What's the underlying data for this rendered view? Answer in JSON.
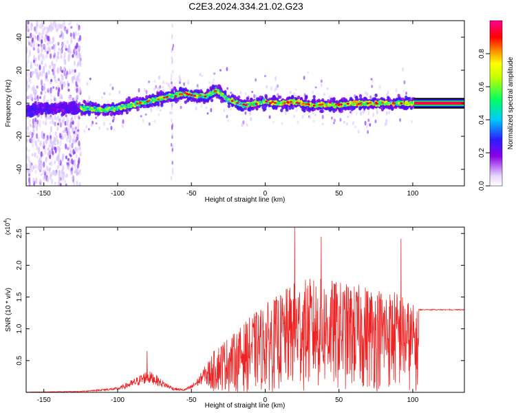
{
  "figure_title": "C2E3.2024.334.21.02.G23",
  "chart_data": [
    {
      "type": "heatmap",
      "panel": "top",
      "xlabel": "Height of straight line (km)",
      "ylabel": "Frequency (Hz)",
      "xlim": [
        -162,
        135
      ],
      "ylim": [
        -50,
        50
      ],
      "xticks": [
        -150,
        -100,
        -50,
        0,
        50,
        100
      ],
      "yticks": [
        -40,
        -20,
        0,
        20,
        40
      ],
      "colorbar": {
        "label": "Normalized spectral amplitude",
        "range": [
          0.0,
          1.0
        ],
        "ticks": [
          0.0,
          0.2,
          0.4,
          0.6,
          0.8
        ],
        "colors": [
          "#ffffff",
          "#e0ccff",
          "#7a00e6",
          "#2a1cff",
          "#00c8ff",
          "#00ff60",
          "#ffff00",
          "#ff6600",
          "#ff0000",
          "#ff0090"
        ]
      },
      "ridge": {
        "x": [
          -162,
          -140,
          -120,
          -110,
          -100,
          -90,
          -80,
          -70,
          -60,
          -55,
          -50,
          -40,
          -33,
          -25,
          -15,
          -5,
          0,
          10,
          20,
          30,
          40,
          50,
          60,
          70,
          80,
          90,
          100,
          135
        ],
        "frequency_hz": [
          -4,
          -3,
          -3,
          -4,
          -3,
          -1,
          1,
          3,
          5,
          6,
          5,
          4,
          8,
          2,
          -1,
          0,
          1,
          0,
          1,
          -1,
          -1,
          -1,
          0,
          0,
          0,
          0,
          0,
          0
        ]
      },
      "noise_band_x": [
        -162,
        -125
      ]
    },
    {
      "type": "line",
      "panel": "bottom",
      "xlabel": "Height of straight line (km)",
      "ylabel": "SNR (10 * v/v)",
      "yscale_label": "(x10^4)",
      "xlim": [
        -162,
        135
      ],
      "ylim": [
        0,
        2.6
      ],
      "xticks": [
        -150,
        -100,
        -50,
        0,
        50,
        100
      ],
      "yticks": [
        0.5,
        1.0,
        1.5,
        2.0,
        2.5
      ],
      "ytick_labels": [
        "0.5",
        "1.0",
        "1.5",
        "2.0",
        "2.5"
      ],
      "color": "#ee2222",
      "envelope": {
        "x": [
          -162,
          -125,
          -100,
          -90,
          -80,
          -75,
          -70,
          -62,
          -55,
          -50,
          -45,
          -40,
          -35,
          -30,
          -20,
          -10,
          0,
          10,
          20,
          30,
          40,
          50,
          60,
          70,
          80,
          90,
          95,
          100,
          103,
          105,
          110,
          135
        ],
        "y": [
          0.005,
          0.02,
          0.08,
          0.2,
          0.35,
          0.3,
          0.2,
          0.08,
          0.05,
          0.12,
          0.25,
          0.45,
          0.65,
          0.8,
          0.95,
          1.2,
          1.4,
          1.55,
          1.75,
          1.8,
          1.8,
          1.75,
          1.7,
          1.7,
          1.65,
          1.6,
          1.5,
          1.4,
          1.3,
          1.3,
          1.3,
          1.29
        ]
      },
      "peaks": [
        {
          "x": -80,
          "y": 0.65
        },
        {
          "x": 20,
          "y": 2.6
        },
        {
          "x": 38,
          "y": 2.45
        },
        {
          "x": 92,
          "y": 2.42
        }
      ],
      "plateau_value": 1.3
    }
  ]
}
